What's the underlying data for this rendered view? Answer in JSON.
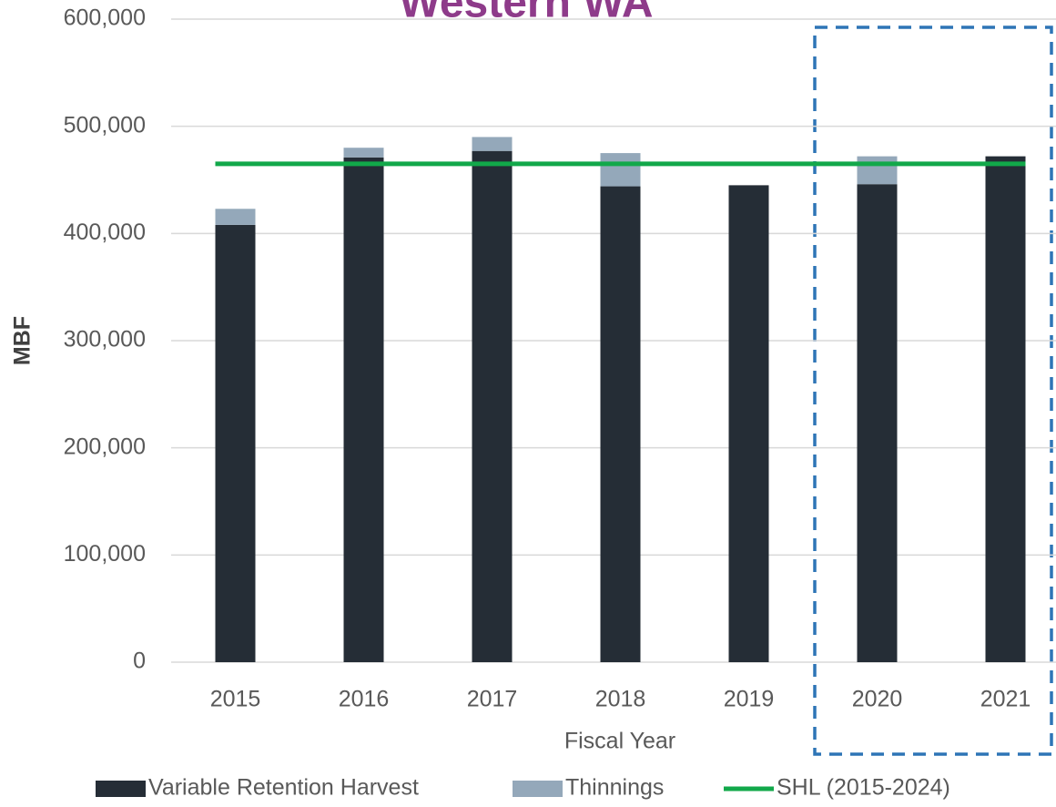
{
  "chart_data": {
    "type": "bar",
    "stacked": true,
    "title": "Western WA",
    "x_label": "Fiscal Year",
    "y_label": "MBF",
    "categories": [
      "2015",
      "2016",
      "2017",
      "2018",
      "2019",
      "2020",
      "2021"
    ],
    "series": [
      {
        "name": "Variable Retention Harvest",
        "color": "#252d36",
        "type": "bar",
        "values": [
          408000,
          471000,
          477000,
          444000,
          445000,
          446000,
          472000
        ]
      },
      {
        "name": "Thinnings",
        "color": "#94a8ba",
        "type": "bar",
        "values": [
          15000,
          9000,
          13000,
          31000,
          0,
          26000,
          0
        ]
      },
      {
        "name": "SHL (2015-2024)",
        "color": "#12a84a",
        "type": "line",
        "values": [
          465000,
          465000,
          465000,
          465000,
          465000,
          465000,
          465000
        ]
      }
    ],
    "ylim": [
      0,
      600000
    ],
    "yticks": [
      {
        "value": 0,
        "label": "0"
      },
      {
        "value": 100000,
        "label": "100,000"
      },
      {
        "value": 200000,
        "label": "200,000"
      },
      {
        "value": 300000,
        "label": "300,000"
      },
      {
        "value": 400000,
        "label": "400,000"
      },
      {
        "value": 500000,
        "label": "500,000"
      },
      {
        "value": 600000,
        "label": "600,000"
      }
    ],
    "grid": true,
    "legend": "bottom"
  }
}
